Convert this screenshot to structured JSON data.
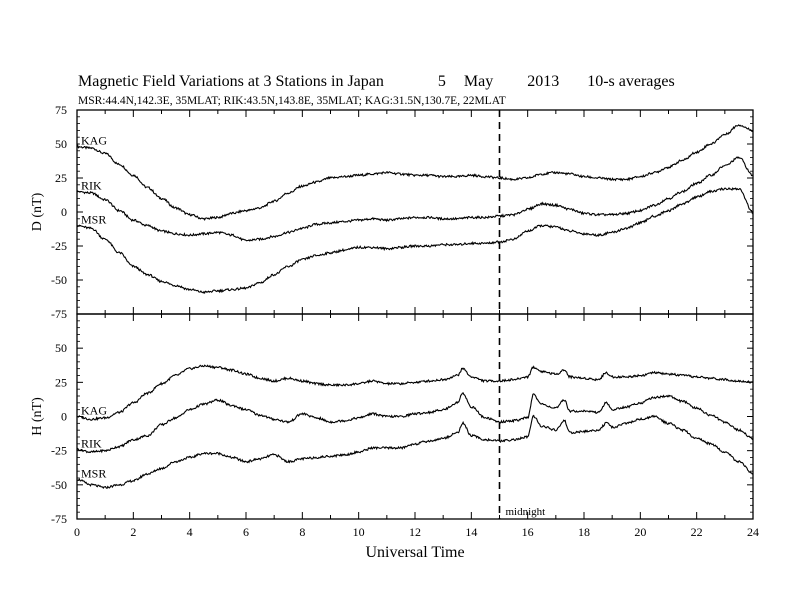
{
  "title": {
    "text": "Magnetic Field Variations at 3 Stations in Japan",
    "day": "5",
    "month": "May",
    "year": "2013",
    "averaging": "10-s averages"
  },
  "subtitle": "MSR:44.4N,142.3E, 35MLAT;  RIK:43.5N,143.8E, 35MLAT;  KAG:31.5N,130.7E, 22MLAT",
  "chart_data": [
    {
      "type": "line",
      "panel": "top",
      "ylabel": "D (nT)",
      "ylim": [
        -75,
        75
      ],
      "yticks": [
        75,
        50,
        25,
        0,
        -25,
        -50,
        -75
      ],
      "xlim": [
        0,
        24
      ],
      "midnight_x": 15,
      "series": [
        {
          "name": "KAG",
          "x": [
            0,
            0.5,
            1,
            1.5,
            2,
            2.5,
            3,
            3.5,
            4,
            4.5,
            5,
            5.5,
            6,
            6.5,
            7,
            7.5,
            8,
            8.5,
            9,
            9.5,
            10,
            10.5,
            11,
            11.5,
            12,
            12.5,
            13,
            13.5,
            14,
            14.5,
            15,
            15.5,
            16,
            16.5,
            17,
            17.5,
            18,
            18.5,
            19,
            19.5,
            20,
            20.5,
            21,
            21.5,
            22,
            22.5,
            23,
            23.5,
            24
          ],
          "y": [
            48,
            47,
            43,
            35,
            27,
            18,
            10,
            3,
            -2,
            -5,
            -4,
            -1,
            1,
            3,
            8,
            14,
            19,
            22,
            25,
            26,
            27,
            28,
            29,
            28,
            27,
            27,
            26,
            26,
            27,
            26,
            25,
            24,
            25,
            28,
            29,
            28,
            26,
            25,
            24,
            24,
            26,
            29,
            33,
            38,
            44,
            50,
            57,
            64,
            60
          ]
        },
        {
          "name": "RIK",
          "x": [
            0,
            0.5,
            1,
            1.5,
            2,
            2.5,
            3,
            3.5,
            4,
            4.5,
            5,
            5.5,
            6,
            6.5,
            7,
            7.5,
            8,
            8.5,
            9,
            9.5,
            10,
            10.5,
            11,
            11.5,
            12,
            12.5,
            13,
            13.5,
            14,
            14.5,
            15,
            15.5,
            16,
            16.5,
            17,
            17.5,
            18,
            18.5,
            19,
            19.5,
            20,
            20.5,
            21,
            21.5,
            22,
            22.5,
            23,
            23.5,
            24
          ],
          "y": [
            15,
            14,
            9,
            1,
            -6,
            -10,
            -14,
            -16,
            -17,
            -16,
            -15,
            -17,
            -21,
            -20,
            -18,
            -15,
            -12,
            -9,
            -8,
            -7,
            -6,
            -5,
            -6,
            -5,
            -4,
            -4,
            -5,
            -5,
            -4,
            -4,
            -3,
            -2,
            2,
            6,
            5,
            2,
            -1,
            -2,
            -2,
            -1,
            1,
            5,
            10,
            15,
            21,
            27,
            34,
            40,
            27
          ]
        },
        {
          "name": "MSR",
          "x": [
            0,
            0.5,
            1,
            1.5,
            2,
            2.5,
            3,
            3.5,
            4,
            4.5,
            5,
            5.5,
            6,
            6.5,
            7,
            7.5,
            8,
            8.5,
            9,
            9.5,
            10,
            10.5,
            11,
            11.5,
            12,
            12.5,
            13,
            13.5,
            14,
            14.5,
            15,
            15.5,
            16,
            16.5,
            17,
            17.5,
            18,
            18.5,
            19,
            19.5,
            20,
            20.5,
            21,
            21.5,
            22,
            22.5,
            23,
            23.5,
            24
          ],
          "y": [
            -10,
            -12,
            -20,
            -30,
            -40,
            -46,
            -51,
            -54,
            -57,
            -59,
            -58,
            -57,
            -56,
            -52,
            -46,
            -40,
            -35,
            -32,
            -30,
            -28,
            -26,
            -26,
            -27,
            -26,
            -25,
            -25,
            -24,
            -24,
            -23,
            -23,
            -22,
            -20,
            -14,
            -10,
            -11,
            -14,
            -16,
            -17,
            -15,
            -12,
            -8,
            -3,
            1,
            6,
            11,
            15,
            17,
            17,
            0
          ]
        }
      ]
    },
    {
      "type": "line",
      "panel": "bottom",
      "ylabel": "H (nT)",
      "xlabel": "Universal Time",
      "ylim": [
        -75,
        75
      ],
      "yticks": [
        75,
        50,
        25,
        0,
        -25,
        -50,
        -75
      ],
      "xlim": [
        0,
        24
      ],
      "xticks": [
        0,
        2,
        4,
        6,
        8,
        10,
        12,
        14,
        16,
        18,
        20,
        22,
        24
      ],
      "midnight_x": 15,
      "midnight_label": "midnight",
      "series": [
        {
          "name": "KAG",
          "x": [
            0,
            0.5,
            1,
            1.5,
            2,
            2.5,
            3,
            3.5,
            4,
            4.5,
            5,
            5.5,
            6,
            6.5,
            7,
            7.5,
            8,
            8.5,
            9,
            9.5,
            10,
            10.5,
            11,
            11.5,
            12,
            12.5,
            13,
            13.5,
            13.7,
            14,
            14.5,
            15,
            15.5,
            16,
            16.2,
            16.5,
            17,
            17.3,
            17.5,
            18,
            18.5,
            18.8,
            19,
            19.5,
            20,
            20.5,
            21,
            21.5,
            22,
            22.5,
            23,
            23.5,
            24
          ],
          "y": [
            0,
            -2,
            -1,
            3,
            10,
            17,
            24,
            30,
            35,
            37,
            36,
            34,
            31,
            28,
            26,
            28,
            26,
            24,
            23,
            23,
            24,
            26,
            24,
            24,
            25,
            26,
            27,
            30,
            35,
            29,
            26,
            26,
            27,
            29,
            36,
            33,
            31,
            34,
            29,
            28,
            27,
            32,
            29,
            29,
            30,
            32,
            31,
            30,
            29,
            28,
            27,
            26,
            25
          ]
        },
        {
          "name": "RIK",
          "x": [
            0,
            0.5,
            1,
            1.5,
            2,
            2.5,
            3,
            3.5,
            4,
            4.5,
            5,
            5.5,
            6,
            6.5,
            7,
            7.5,
            8,
            8.5,
            9,
            9.5,
            10,
            10.5,
            11,
            11.5,
            12,
            12.5,
            13,
            13.5,
            13.7,
            14,
            14.5,
            15,
            15.5,
            16,
            16.2,
            16.5,
            17,
            17.3,
            17.5,
            18,
            18.5,
            18.8,
            19,
            19.5,
            20,
            20.5,
            21,
            21.5,
            22,
            22.5,
            23,
            23.5,
            24
          ],
          "y": [
            -24,
            -26,
            -25,
            -22,
            -17,
            -14,
            -6,
            -1,
            5,
            9,
            12,
            8,
            5,
            1,
            -2,
            -4,
            2,
            -1,
            -4,
            -3,
            -1,
            2,
            0,
            0,
            2,
            3,
            5,
            10,
            17,
            7,
            -1,
            -4,
            -3,
            -1,
            16,
            9,
            6,
            12,
            4,
            4,
            3,
            10,
            5,
            7,
            10,
            14,
            15,
            11,
            6,
            1,
            -4,
            -10,
            -16
          ]
        },
        {
          "name": "MSR",
          "x": [
            0,
            0.5,
            1,
            1.5,
            2,
            2.5,
            3,
            3.5,
            4,
            4.5,
            5,
            5.5,
            6,
            6.5,
            7,
            7.5,
            8,
            8.5,
            9,
            9.5,
            10,
            10.5,
            11,
            11.5,
            12,
            12.5,
            13,
            13.5,
            13.7,
            14,
            14.5,
            15,
            15.5,
            16,
            16.2,
            16.5,
            17,
            17.3,
            17.5,
            18,
            18.5,
            18.8,
            19,
            19.5,
            20,
            20.5,
            21,
            21.5,
            22,
            22.5,
            23,
            23.5,
            24
          ],
          "y": [
            -46,
            -50,
            -52,
            -50,
            -47,
            -42,
            -38,
            -33,
            -30,
            -27,
            -27,
            -30,
            -33,
            -31,
            -28,
            -33,
            -31,
            -30,
            -29,
            -28,
            -26,
            -23,
            -23,
            -23,
            -20,
            -18,
            -16,
            -12,
            -5,
            -14,
            -17,
            -18,
            -17,
            -15,
            0,
            -7,
            -10,
            -3,
            -12,
            -11,
            -10,
            -5,
            -8,
            -5,
            -2,
            0,
            -5,
            -10,
            -16,
            -20,
            -26,
            -33,
            -42
          ]
        }
      ]
    }
  ]
}
